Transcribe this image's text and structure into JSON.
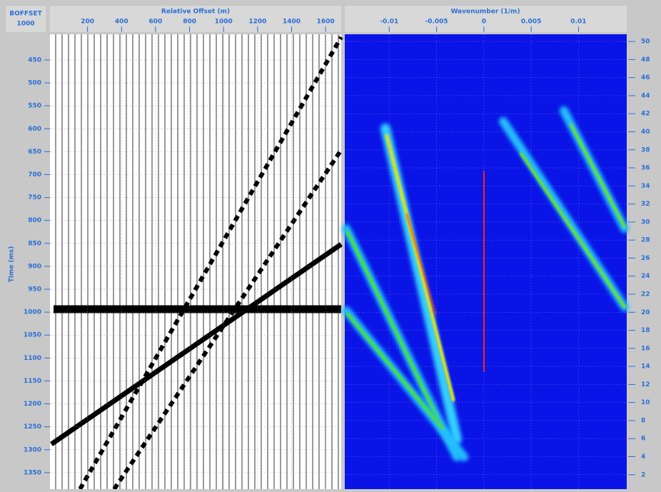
{
  "header": {
    "key": "BOFFSET",
    "value": "1000"
  },
  "left_panel": {
    "x_label": "Relative Offset (m)",
    "xlim": [
      0,
      1700
    ],
    "xticks": [
      200,
      400,
      600,
      800,
      1000,
      1200,
      1400,
      1600
    ],
    "y_label": "Time (ms)",
    "ylim": [
      394,
      1386
    ],
    "yticks": [
      450,
      500,
      550,
      600,
      650,
      700,
      750,
      800,
      850,
      900,
      950,
      1000,
      1050,
      1100,
      1150,
      1200,
      1250,
      1300,
      1350
    ]
  },
  "right_panel": {
    "x_label": "Wavenumber (1/m)",
    "xlim": [
      -0.0147,
      0.0151
    ],
    "xticks": [
      -0.01,
      -0.005,
      0,
      0.005,
      0.01
    ],
    "ylim": [
      0.4,
      50.8
    ],
    "yticks": [
      2,
      4,
      6,
      8,
      10,
      12,
      14,
      16,
      18,
      20,
      22,
      24,
      26,
      28,
      30,
      32,
      34,
      36,
      38,
      40,
      42,
      44,
      46,
      48,
      50
    ]
  }
}
